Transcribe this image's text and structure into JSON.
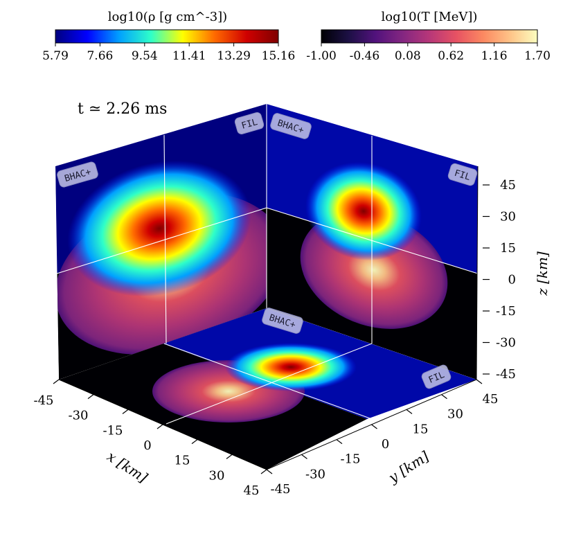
{
  "chart_data": {
    "type": "heatmap",
    "time_label": "t ≃ 2.26 ms",
    "colorbars": [
      {
        "name": "density",
        "title": "log10(ρ [g cm^-3])",
        "ticks": [
          "5.79",
          "7.66",
          "9.54",
          "11.41",
          "13.29",
          "15.16"
        ],
        "range": [
          5.79,
          15.16
        ],
        "colormap": "jet",
        "stops": [
          "#00007f",
          "#0000ff",
          "#00a0ff",
          "#2fffc8",
          "#ffff00",
          "#ff6a00",
          "#d00000",
          "#7f0000"
        ]
      },
      {
        "name": "temperature",
        "title": "log10(T [MeV])",
        "ticks": [
          "-1.00",
          "-0.46",
          "0.08",
          "0.62",
          "1.16",
          "1.70"
        ],
        "range": [
          -1.0,
          1.7
        ],
        "colormap": "magma",
        "stops": [
          "#000004",
          "#1c1044",
          "#51127c",
          "#832681",
          "#b73779",
          "#e75263",
          "#fc8961",
          "#fec488",
          "#fcfdbf"
        ]
      }
    ],
    "axes": {
      "x": {
        "label": "x [km]",
        "ticks": [
          "-45",
          "-30",
          "-15",
          "0",
          "15",
          "30",
          "45"
        ],
        "range": [
          -45,
          45
        ]
      },
      "y": {
        "label": "y [km]",
        "ticks": [
          "-45",
          "-30",
          "-15",
          "0",
          "15",
          "30",
          "45"
        ],
        "range": [
          -45,
          45
        ]
      },
      "z": {
        "label": "z [km]",
        "ticks": [
          "45",
          "30",
          "15",
          "0",
          "-15",
          "-30",
          "-45"
        ],
        "range": [
          -45,
          45
        ]
      }
    },
    "panel_labels": {
      "left_wall": [
        "BHAC+",
        "FIL"
      ],
      "right_wall": [
        "BHAC+",
        "FIL"
      ],
      "floor": [
        "BHAC+",
        "FIL"
      ]
    },
    "background_colors": {
      "density_low": "#00007f",
      "temperature_low": "#000004",
      "grid_line": "#ffffff"
    }
  }
}
